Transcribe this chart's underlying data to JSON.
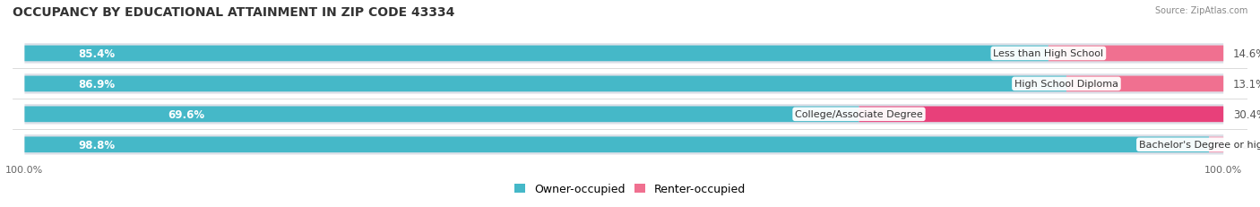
{
  "title": "OCCUPANCY BY EDUCATIONAL ATTAINMENT IN ZIP CODE 43334",
  "source": "Source: ZipAtlas.com",
  "categories": [
    "Less than High School",
    "High School Diploma",
    "College/Associate Degree",
    "Bachelor's Degree or higher"
  ],
  "owner_pct": [
    85.4,
    86.9,
    69.6,
    98.8
  ],
  "renter_pct": [
    14.6,
    13.1,
    30.4,
    1.2
  ],
  "owner_color": "#45b8c8",
  "renter_color_strong": [
    "#f07090",
    "#f07090",
    "#e8407a",
    "#f5a0b8"
  ],
  "renter_color": "#f07090",
  "bg_strip_color": "#f0f0f4",
  "bar_bg_color": "#dde0e8",
  "title_fontsize": 10,
  "label_fontsize": 8.5,
  "tick_fontsize": 8,
  "legend_fontsize": 9,
  "x_left_label": "100.0%",
  "x_right_label": "100.0%"
}
